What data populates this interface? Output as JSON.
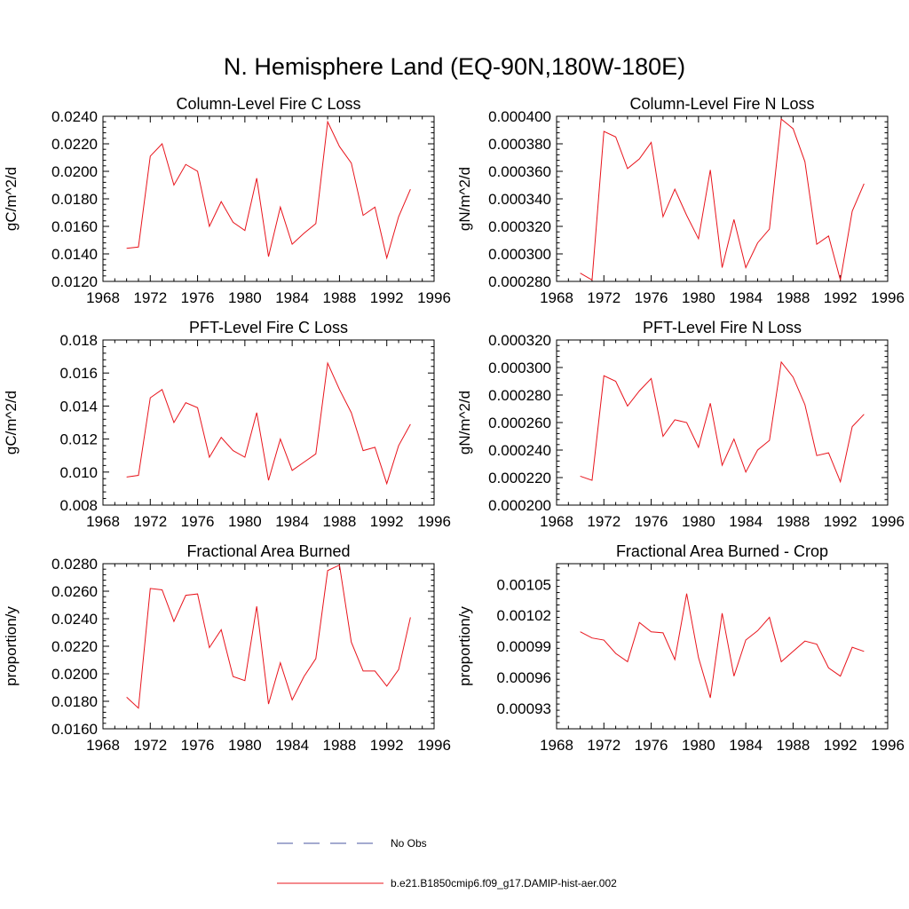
{
  "figure": {
    "title": "N. Hemisphere Land (EQ-90N,180W-180E)"
  },
  "legend": {
    "entries": [
      {
        "label": "No Obs",
        "color": "#4a55a2",
        "dash": true
      },
      {
        "label": "b.e21.B1850cmip6.f09_g17.DAMIP-hist-aer.002",
        "color": "#e8141c",
        "dash": false
      }
    ]
  },
  "chart_data": [
    {
      "type": "line",
      "title": "Column-Level Fire C Loss",
      "ylabel": "gC/m^2/d",
      "xlabel": "",
      "xlim": [
        1968,
        1996
      ],
      "ylim": [
        0.012,
        0.024
      ],
      "xticks": [
        "1968",
        "1972",
        "1976",
        "1980",
        "1984",
        "1988",
        "1992",
        "1996"
      ],
      "yticks": [
        "0.0120",
        "0.0140",
        "0.0160",
        "0.0180",
        "0.0200",
        "0.0220",
        "0.0240"
      ],
      "x": [
        1970,
        1971,
        1972,
        1973,
        1974,
        1975,
        1976,
        1977,
        1978,
        1979,
        1980,
        1981,
        1982,
        1983,
        1984,
        1985,
        1986,
        1987,
        1988,
        1989,
        1990,
        1991,
        1992,
        1993,
        1994
      ],
      "series": [
        {
          "color": "#e8141c",
          "values": [
            0.0144,
            0.0145,
            0.0211,
            0.022,
            0.019,
            0.0205,
            0.02,
            0.016,
            0.0178,
            0.0163,
            0.0157,
            0.0195,
            0.0138,
            0.0174,
            0.0147,
            0.0155,
            0.0162,
            0.0236,
            0.0218,
            0.0206,
            0.0168,
            0.0174,
            0.0137,
            0.0167,
            0.0187
          ]
        }
      ]
    },
    {
      "type": "line",
      "title": "Column-Level Fire N Loss",
      "ylabel": "gN/m^2/d",
      "xlabel": "",
      "xlim": [
        1968,
        1996
      ],
      "ylim": [
        0.00028,
        0.0004
      ],
      "xticks": [
        "1968",
        "1972",
        "1976",
        "1980",
        "1984",
        "1988",
        "1992",
        "1996"
      ],
      "yticks": [
        "0.000280",
        "0.000300",
        "0.000320",
        "0.000340",
        "0.000360",
        "0.000380",
        "0.000400"
      ],
      "x": [
        1970,
        1971,
        1972,
        1973,
        1974,
        1975,
        1976,
        1977,
        1978,
        1979,
        1980,
        1981,
        1982,
        1983,
        1984,
        1985,
        1986,
        1987,
        1988,
        1989,
        1990,
        1991,
        1992,
        1993,
        1994
      ],
      "series": [
        {
          "color": "#e8141c",
          "values": [
            0.000286,
            0.000281,
            0.000389,
            0.000385,
            0.000362,
            0.000369,
            0.000381,
            0.000327,
            0.000347,
            0.000328,
            0.000311,
            0.000361,
            0.00029,
            0.000325,
            0.00029,
            0.000308,
            0.000318,
            0.000398,
            0.000391,
            0.000367,
            0.000307,
            0.000313,
            0.000281,
            0.000331,
            0.000351
          ]
        }
      ]
    },
    {
      "type": "line",
      "title": "PFT-Level Fire C Loss",
      "ylabel": "gC/m^2/d",
      "xlabel": "",
      "xlim": [
        1968,
        1996
      ],
      "ylim": [
        0.008,
        0.018
      ],
      "xticks": [
        "1968",
        "1972",
        "1976",
        "1980",
        "1984",
        "1988",
        "1992",
        "1996"
      ],
      "yticks": [
        "0.008",
        "0.010",
        "0.012",
        "0.014",
        "0.016",
        "0.018"
      ],
      "x": [
        1970,
        1971,
        1972,
        1973,
        1974,
        1975,
        1976,
        1977,
        1978,
        1979,
        1980,
        1981,
        1982,
        1983,
        1984,
        1985,
        1986,
        1987,
        1988,
        1989,
        1990,
        1991,
        1992,
        1993,
        1994
      ],
      "series": [
        {
          "color": "#e8141c",
          "values": [
            0.0097,
            0.0098,
            0.0145,
            0.015,
            0.013,
            0.0142,
            0.0139,
            0.0109,
            0.0121,
            0.0113,
            0.0109,
            0.0136,
            0.0095,
            0.012,
            0.0101,
            0.0106,
            0.0111,
            0.0166,
            0.015,
            0.0136,
            0.0113,
            0.0115,
            0.0093,
            0.0116,
            0.0129
          ]
        }
      ]
    },
    {
      "type": "line",
      "title": "PFT-Level Fire N Loss",
      "ylabel": "gN/m^2/d",
      "xlabel": "",
      "xlim": [
        1968,
        1996
      ],
      "ylim": [
        0.0002,
        0.00032
      ],
      "xticks": [
        "1968",
        "1972",
        "1976",
        "1980",
        "1984",
        "1988",
        "1992",
        "1996"
      ],
      "yticks": [
        "0.000200",
        "0.000220",
        "0.000240",
        "0.000260",
        "0.000280",
        "0.000300",
        "0.000320"
      ],
      "x": [
        1970,
        1971,
        1972,
        1973,
        1974,
        1975,
        1976,
        1977,
        1978,
        1979,
        1980,
        1981,
        1982,
        1983,
        1984,
        1985,
        1986,
        1987,
        1988,
        1989,
        1990,
        1991,
        1992,
        1993,
        1994
      ],
      "series": [
        {
          "color": "#e8141c",
          "values": [
            0.000221,
            0.000218,
            0.000294,
            0.00029,
            0.000272,
            0.000283,
            0.000292,
            0.00025,
            0.000262,
            0.00026,
            0.000242,
            0.000274,
            0.000229,
            0.000248,
            0.000224,
            0.00024,
            0.000247,
            0.000304,
            0.000293,
            0.000273,
            0.000236,
            0.000238,
            0.000217,
            0.000257,
            0.000266
          ]
        }
      ]
    },
    {
      "type": "line",
      "title": "Fractional Area Burned",
      "ylabel": "proportion/y",
      "xlabel": "",
      "xlim": [
        1968,
        1996
      ],
      "ylim": [
        0.016,
        0.028
      ],
      "xticks": [
        "1968",
        "1972",
        "1976",
        "1980",
        "1984",
        "1988",
        "1992",
        "1996"
      ],
      "yticks": [
        "0.0160",
        "0.0180",
        "0.0200",
        "0.0220",
        "0.0240",
        "0.0260",
        "0.0280"
      ],
      "x": [
        1970,
        1971,
        1972,
        1973,
        1974,
        1975,
        1976,
        1977,
        1978,
        1979,
        1980,
        1981,
        1982,
        1983,
        1984,
        1985,
        1986,
        1987,
        1988,
        1989,
        1990,
        1991,
        1992,
        1993,
        1994
      ],
      "series": [
        {
          "color": "#e8141c",
          "values": [
            0.0183,
            0.0175,
            0.0262,
            0.0261,
            0.0238,
            0.0257,
            0.0258,
            0.0219,
            0.0232,
            0.0198,
            0.0195,
            0.0249,
            0.0178,
            0.0208,
            0.0181,
            0.0198,
            0.0211,
            0.0275,
            0.0279,
            0.0223,
            0.0202,
            0.0202,
            0.0191,
            0.0203,
            0.0241
          ]
        }
      ]
    },
    {
      "type": "line",
      "title": "Fractional Area Burned - Crop",
      "ylabel": "proportion/y",
      "xlabel": "",
      "xlim": [
        1968,
        1996
      ],
      "ylim": [
        0.00091,
        0.00107
      ],
      "xticks": [
        "1968",
        "1972",
        "1976",
        "1980",
        "1984",
        "1988",
        "1992",
        "1996"
      ],
      "yticks": [
        "0.00093",
        "0.00096",
        "0.00099",
        "0.00102",
        "0.00105"
      ],
      "ytick_values": [
        0.00093,
        0.00096,
        0.00099,
        0.00102,
        0.00105
      ],
      "x": [
        1970,
        1971,
        1972,
        1973,
        1974,
        1975,
        1976,
        1977,
        1978,
        1979,
        1980,
        1981,
        1982,
        1983,
        1984,
        1985,
        1986,
        1987,
        1988,
        1989,
        1990,
        1991,
        1992,
        1993,
        1994
      ],
      "series": [
        {
          "color": "#e8141c",
          "values": [
            0.001004,
            0.000998,
            0.000996,
            0.000983,
            0.000975,
            0.001013,
            0.001004,
            0.001003,
            0.000977,
            0.001041,
            0.000979,
            0.00094,
            0.001022,
            0.000961,
            0.000996,
            0.001005,
            0.001018,
            0.000975,
            0.000985,
            0.000995,
            0.000992,
            0.000969,
            0.000961,
            0.000989,
            0.000985
          ]
        }
      ]
    }
  ]
}
